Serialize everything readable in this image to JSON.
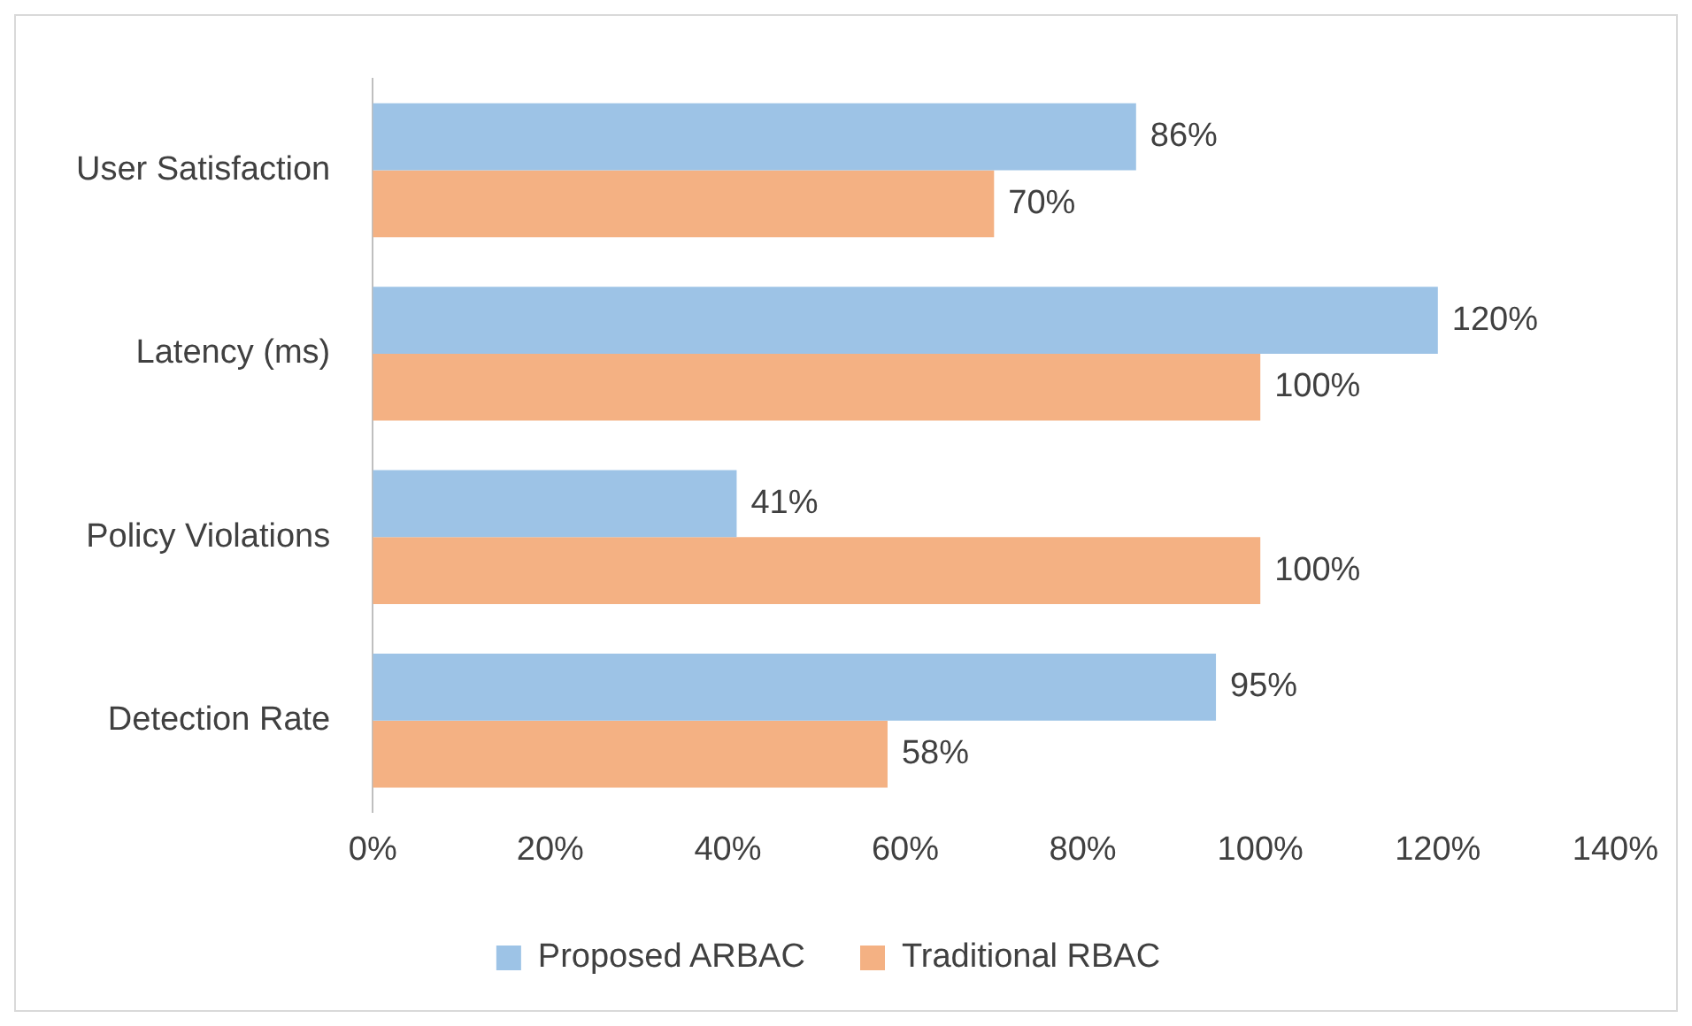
{
  "chart_data": {
    "type": "bar",
    "orientation": "horizontal",
    "categories": [
      "User Satisfaction",
      "Latency (ms)",
      "Policy Violations",
      "Detection Rate"
    ],
    "series": [
      {
        "name": "Proposed ARBAC",
        "color": "#9dc3e6",
        "values": [
          86,
          120,
          41,
          95
        ],
        "value_labels": [
          "86%",
          "120%",
          "41%",
          "95%"
        ]
      },
      {
        "name": "Traditional RBAC",
        "color": "#f4b183",
        "values": [
          70,
          100,
          100,
          58
        ],
        "value_labels": [
          "70%",
          "100%",
          "100%",
          "58%"
        ]
      }
    ],
    "xlim": [
      0,
      140
    ],
    "xticks": [
      {
        "value": 0,
        "label": "0%"
      },
      {
        "value": 20,
        "label": "20%"
      },
      {
        "value": 40,
        "label": "40%"
      },
      {
        "value": 60,
        "label": "60%"
      },
      {
        "value": 80,
        "label": "80%"
      },
      {
        "value": 100,
        "label": "100%"
      },
      {
        "value": 120,
        "label": "120%"
      },
      {
        "value": 140,
        "label": "140%"
      }
    ],
    "grid": false,
    "legend": "bottom"
  }
}
